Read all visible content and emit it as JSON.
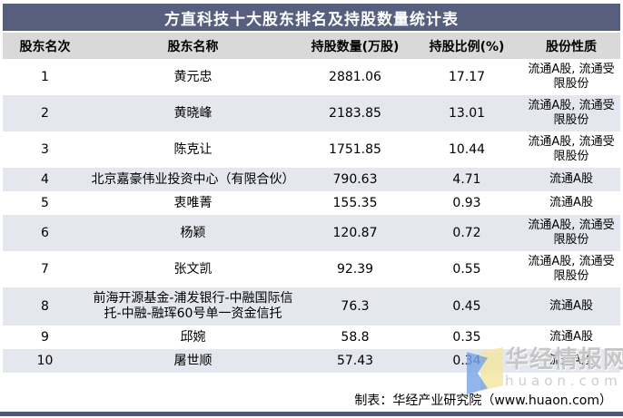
{
  "chart_data": {
    "type": "table",
    "title": "方直科技十大股东排名及持股数量统计表",
    "columns": [
      "股东名次",
      "股东名称",
      "持股数量(万股)",
      "持股比例(%)",
      "股份性质"
    ],
    "rows": [
      [
        "1",
        "黄元忠",
        "2881.06",
        "17.17",
        "流通A股, 流通受限股份"
      ],
      [
        "2",
        "黄晓峰",
        "2183.85",
        "13.01",
        "流通A股, 流通受限股份"
      ],
      [
        "3",
        "陈克让",
        "1751.85",
        "10.44",
        "流通A股, 流通受限股份"
      ],
      [
        "4",
        "北京嘉豪伟业投资中心（有限合伙）",
        "790.63",
        "4.71",
        "流通A股"
      ],
      [
        "5",
        "衷唯菁",
        "155.35",
        "0.93",
        "流通A股"
      ],
      [
        "6",
        "杨颖",
        "120.87",
        "0.72",
        "流通A股, 流通受限股份"
      ],
      [
        "7",
        "张文凯",
        "92.39",
        "0.55",
        "流通A股, 流通受限股份"
      ],
      [
        "8",
        "前海开源基金-浦发银行-中融国际信托-中融-融珲60号单一资金信托",
        "76.3",
        "0.45",
        "流通A股"
      ],
      [
        "9",
        "邱婉",
        "58.8",
        "0.35",
        "流通A股"
      ],
      [
        "10",
        "屠世顺",
        "57.43",
        "0.34",
        "流通A股"
      ]
    ],
    "layout_hints": {
      "striped_rows": "even ranks shaded",
      "all_cells_centered": true,
      "grid": false
    }
  },
  "footer": {
    "credit": "制表：华经产业研究院（www.huaon.com）"
  },
  "watermark": {
    "site_name": "华经情报网",
    "site_url": "huaon.com",
    "logo_icon": "huaon-flag-logo"
  },
  "colors": {
    "title_bar_bg": "#565f7d",
    "title_text": "#ffffff",
    "header_row_bg": "#d9d9d9",
    "stripe_row_bg": "#e5e7ee",
    "bottom_bar": "#4e5878",
    "watermark_blue": "#7aa5e9",
    "watermark_yellow": "#f3e6a2",
    "watermark_text": "#c6c6c6"
  }
}
